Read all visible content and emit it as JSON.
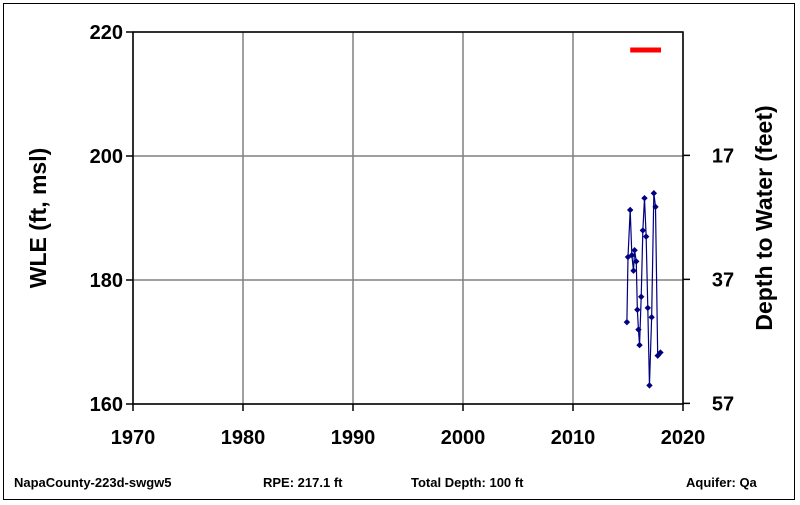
{
  "chart_data": {
    "type": "scatter",
    "ylabel": "WLE (ft, msl)",
    "y2label": "Depth to Water (feet)",
    "xlim": [
      1970,
      2020
    ],
    "ylim": [
      160,
      220
    ],
    "x_ticks": [
      "1970",
      "1980",
      "1990",
      "2000",
      "2010",
      "2020"
    ],
    "y_ticks": [
      "160",
      "180",
      "200",
      "220"
    ],
    "y2_ticks": [
      {
        "label": "17",
        "wle": 200.1
      },
      {
        "label": "37",
        "wle": 180.1
      },
      {
        "label": "57",
        "wle": 160.1
      }
    ],
    "grid": true,
    "rpe_marker": {
      "x_start": 2015.2,
      "x_end": 2018.0,
      "y": 217.1,
      "color": "#ff0000"
    },
    "series": [
      {
        "color": "#000080",
        "points": [
          {
            "x": 2014.9,
            "y": 173.2
          },
          {
            "x": 2015.0,
            "y": 183.7
          },
          {
            "x": 2015.2,
            "y": 191.3
          },
          {
            "x": 2015.35,
            "y": 184.0
          },
          {
            "x": 2015.5,
            "y": 181.5
          },
          {
            "x": 2015.6,
            "y": 184.8
          },
          {
            "x": 2015.75,
            "y": 183.0
          },
          {
            "x": 2015.85,
            "y": 175.2
          },
          {
            "x": 2015.95,
            "y": 172.0
          },
          {
            "x": 2016.05,
            "y": 169.5
          },
          {
            "x": 2016.2,
            "y": 177.3
          },
          {
            "x": 2016.35,
            "y": 188.0
          },
          {
            "x": 2016.5,
            "y": 193.2
          },
          {
            "x": 2016.65,
            "y": 187.0
          },
          {
            "x": 2016.8,
            "y": 175.5
          },
          {
            "x": 2016.95,
            "y": 163.0
          },
          {
            "x": 2017.15,
            "y": 174.0
          },
          {
            "x": 2017.35,
            "y": 194.0
          },
          {
            "x": 2017.5,
            "y": 191.8
          },
          {
            "x": 2017.7,
            "y": 167.8
          },
          {
            "x": 2017.95,
            "y": 168.3
          }
        ]
      }
    ]
  },
  "footer": {
    "well_id": "NapaCounty-223d-swgw5",
    "rpe": "RPE: 217.1 ft",
    "total_depth": "Total Depth: 100 ft",
    "aquifer": "Aquifer: Qa"
  }
}
